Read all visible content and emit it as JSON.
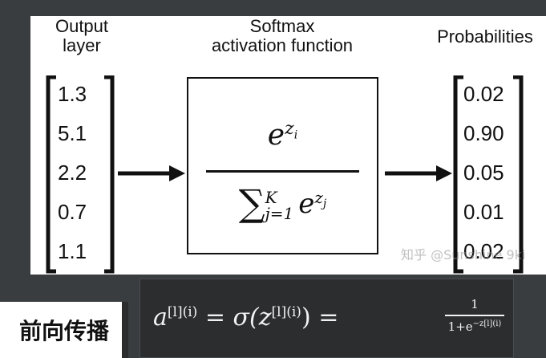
{
  "headers": {
    "output_layer": "Output\nlayer",
    "softmax": "Softmax\nactivation function",
    "probabilities": "Probabilities"
  },
  "output_vector": [
    "1.3",
    "5.1",
    "2.2",
    "0.7",
    "1.1"
  ],
  "probability_vector": [
    "0.02",
    "0.90",
    "0.05",
    "0.01",
    "0.02"
  ],
  "softmax_formula": {
    "numerator_base": "e",
    "numerator_exponent": "z",
    "numerator_sub": "i",
    "denominator_sum": "∑",
    "denominator_upper": "K",
    "denominator_lower": "j=1",
    "denominator_base": "e",
    "denominator_exponent": "z",
    "denominator_sub": "j"
  },
  "watermark": "知乎 @Sunshine 9ki",
  "tag_label": "前向传播",
  "bottom_formula": {
    "lhs_a": "a",
    "lhs_sup": "[l](i)",
    "eq1": "=",
    "sigma": "σ(z",
    "sigma_sup": "[l](i)",
    "sigma_close": ")",
    "eq2": "=",
    "frac_num": "1",
    "frac_den": "1+e",
    "frac_den_sup": "−z[l](i)"
  },
  "colors": {
    "background": "#3a3d40",
    "panel": "#ffffff",
    "ink": "#111111"
  }
}
